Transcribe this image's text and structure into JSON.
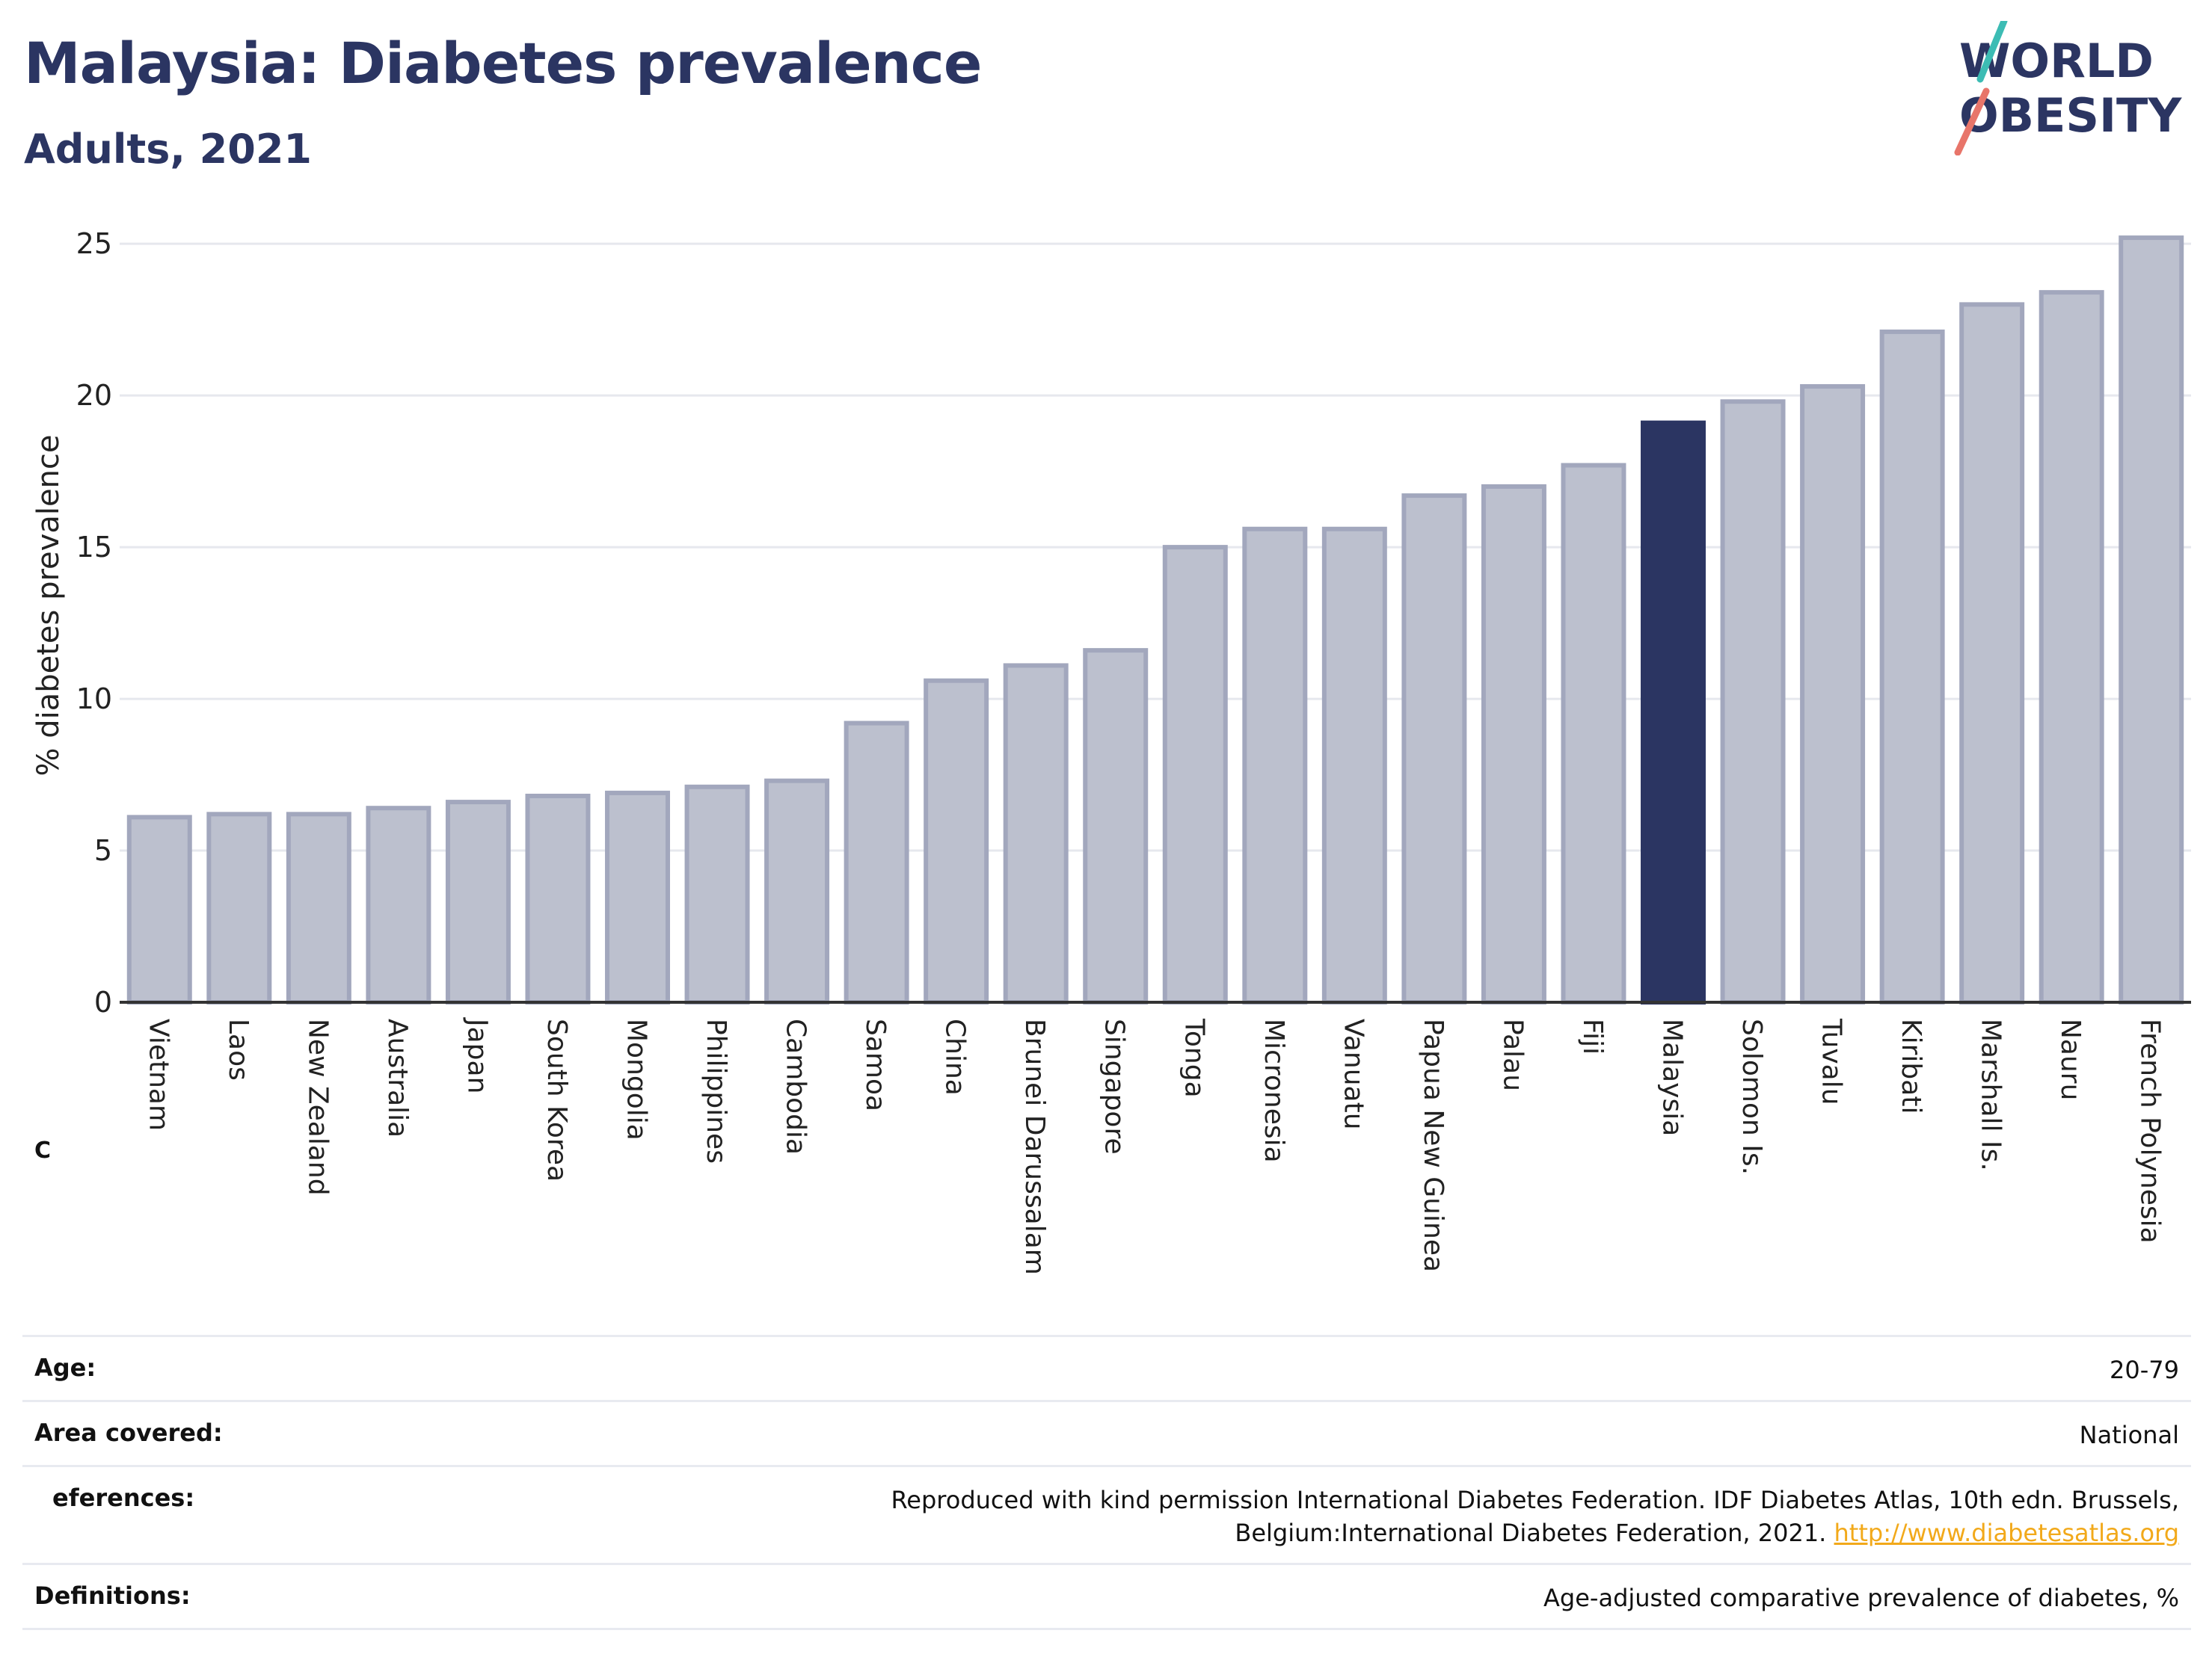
{
  "header": {
    "title": "Malaysia: Diabetes prevalence",
    "subtitle": "Adults, 2021"
  },
  "logo": {
    "line1": "WORLD",
    "line2": "OBESITY"
  },
  "panel_letter": "C",
  "colors": {
    "bar": "#bcc0ce",
    "bar_stroke": "#a2a7bd",
    "highlight": "#2b3562",
    "title": "#2b3562",
    "logo_teal": "#3cbcb4",
    "logo_red": "#e8756a",
    "link": "#f2a91a"
  },
  "chart_data": {
    "type": "bar",
    "ylabel": "% diabetes prevalence",
    "ylim": [
      0,
      25.5
    ],
    "yticks": [
      0,
      5,
      10,
      15,
      20,
      25
    ],
    "grid": true,
    "highlight": "Malaysia",
    "categories": [
      "Vietnam",
      "Laos",
      "New Zealand",
      "Australia",
      "Japan",
      "South Korea",
      "Mongolia",
      "Philippines",
      "Cambodia",
      "Samoa",
      "China",
      "Brunei Darussalam",
      "Singapore",
      "Tonga",
      "Micronesia",
      "Vanuatu",
      "Papua New Guinea",
      "Palau",
      "Fiji",
      "Malaysia",
      "Solomon Is.",
      "Tuvalu",
      "Kiribati",
      "Marshall Is.",
      "Nauru",
      "French Polynesia"
    ],
    "values": [
      6.1,
      6.2,
      6.2,
      6.4,
      6.6,
      6.8,
      6.9,
      7.1,
      7.3,
      9.2,
      10.6,
      11.1,
      11.6,
      15.0,
      15.6,
      15.6,
      16.7,
      17.0,
      17.7,
      19.1,
      19.8,
      20.3,
      22.1,
      23.0,
      23.4,
      25.2
    ]
  },
  "info": {
    "age_label": "Age:",
    "age_value": "20-79",
    "area_label": "Area covered:",
    "area_value": "National",
    "references_label": "eferences:",
    "references_text": "Reproduced with kind permission International Diabetes Federation.  IDF Diabetes Atlas, 10th edn. Brussels, Belgium:International Diabetes Federation, 2021.",
    "references_link": "http://www.diabetesatlas.org",
    "definitions_label": "Definitions:",
    "definitions_value": "Age-adjusted comparative prevalence of diabetes, %"
  }
}
